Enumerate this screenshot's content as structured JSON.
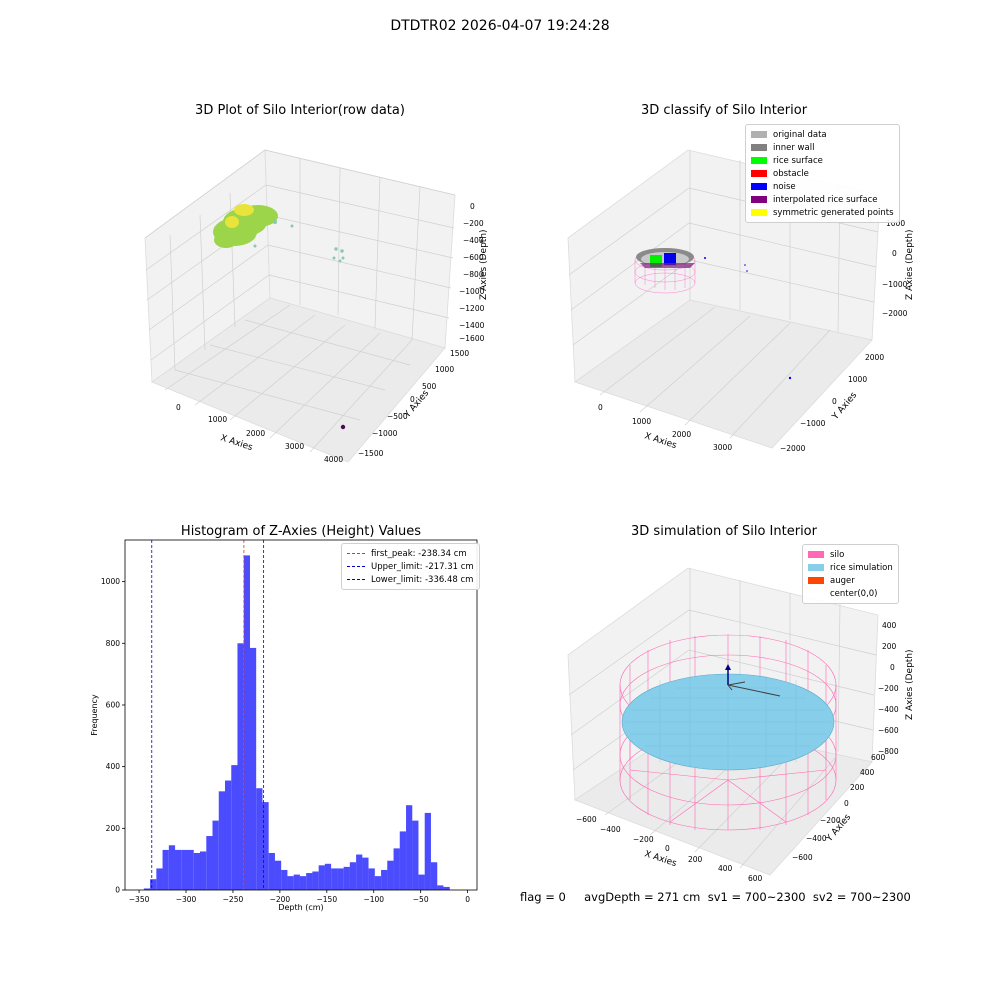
{
  "suptitle": "DTDTR02 2026-04-07 19:24:28",
  "footer": "flag = 0     avgDepth = 271 cm  sv1 = 700~2300  sv2 = 700~2300",
  "chart_data": [
    {
      "type": "scatter",
      "title": "3D Plot of Silo Interior(row data)",
      "xlabel": "X Axies",
      "ylabel": "Y Axies",
      "zlabel": "Z Axies (Depth)",
      "x_ticks": [
        "0",
        "1000",
        "2000",
        "3000",
        "4000"
      ],
      "y_ticks": [
        "1500",
        "1000",
        "500",
        "0",
        "−500",
        "−1000",
        "−1500"
      ],
      "z_ticks": [
        "0",
        "−200",
        "−400",
        "−600",
        "−800",
        "−1000",
        "−1200",
        "−1400",
        "−1600"
      ],
      "grid": true
    },
    {
      "type": "scatter",
      "title": "3D classify of Silo Interior",
      "xlabel": "X Axies",
      "ylabel": "Y Axies",
      "zlabel": "Z Axies (Depth)",
      "x_ticks": [
        "0",
        "1000",
        "2000",
        "3000"
      ],
      "y_ticks": [
        "2000",
        "1000",
        "0",
        "−1000",
        "−2000"
      ],
      "z_ticks": [
        "1000",
        "0",
        "−1000",
        "−2000"
      ],
      "legend": [
        {
          "name": "original data",
          "color": "#b0b0b0"
        },
        {
          "name": "inner wall",
          "color": "#808080"
        },
        {
          "name": "rice surface",
          "color": "#00ff00"
        },
        {
          "name": "obstacle",
          "color": "#ff0000"
        },
        {
          "name": "noise",
          "color": "#0000ff"
        },
        {
          "name": "interpolated rice surface",
          "color": "#800080"
        },
        {
          "name": "symmetric generated points",
          "color": "#ffff00"
        }
      ],
      "legend_position": "top-right",
      "grid": true
    },
    {
      "type": "bar",
      "title": "Histogram of Z-Axies (Height) Values",
      "xlabel": "Depth (cm)",
      "ylabel": "Frequency",
      "xlim": [
        -365,
        10
      ],
      "ylim": [
        0,
        1135
      ],
      "x_ticks": [
        -350,
        -300,
        -250,
        -200,
        -150,
        -100,
        -50,
        0
      ],
      "y_ticks": [
        0,
        200,
        400,
        600,
        800,
        1000
      ],
      "bin_width": 6.65,
      "bins_start": [
        -344.9,
        -338.3,
        -331.6,
        -325.0,
        -318.3,
        -311.7,
        -305.0,
        -298.4,
        -291.7,
        -285.1,
        -278.4,
        -271.8,
        -265.1,
        -258.5,
        -251.8,
        -245.2,
        -238.5,
        -231.9,
        -225.2,
        -218.6,
        -211.9,
        -205.3,
        -198.6,
        -192.0,
        -185.3,
        -178.7,
        -172.0,
        -165.4,
        -158.7,
        -152.1,
        -145.4,
        -138.8,
        -132.1,
        -125.5,
        -118.8,
        -112.2,
        -105.5,
        -98.9,
        -92.2,
        -85.6,
        -78.9,
        -72.3,
        -65.6,
        -59.0,
        -52.3,
        -45.7,
        -39.0,
        -32.4,
        -25.7,
        -19.1,
        -12.4,
        -5.8
      ],
      "values": [
        5,
        35,
        70,
        130,
        145,
        130,
        130,
        130,
        120,
        125,
        175,
        225,
        320,
        355,
        405,
        800,
        1085,
        785,
        330,
        285,
        120,
        95,
        65,
        45,
        50,
        45,
        55,
        60,
        80,
        85,
        70,
        70,
        75,
        90,
        115,
        105,
        70,
        45,
        65,
        95,
        135,
        190,
        275,
        225,
        50,
        250,
        90,
        15,
        10,
        0,
        0,
        0
      ],
      "vlines": [
        {
          "name": "first_peak: -238.34 cm",
          "x": -238.34,
          "color": "#e03030"
        },
        {
          "name": "Upper_limit: -217.31 cm",
          "x": -217.31,
          "color": "#0000cc"
        },
        {
          "name": "Lower_limit: -336.48 cm",
          "x": -336.48,
          "color": "#0000cc"
        }
      ],
      "bar_color": "#0000ff",
      "legend_position": "top-right"
    },
    {
      "type": "scatter",
      "title": "3D simulation of Silo Interior",
      "xlabel": "X Axies",
      "ylabel": "Y Axies",
      "zlabel": "Z Axies (Depth)",
      "x_ticks": [
        "−600",
        "−400",
        "−200",
        "0",
        "200",
        "400",
        "600"
      ],
      "y_ticks": [
        "600",
        "400",
        "200",
        "0",
        "−200",
        "−400",
        "−600"
      ],
      "z_ticks": [
        "400",
        "200",
        "0",
        "−200",
        "−400",
        "−600",
        "−800"
      ],
      "legend": [
        {
          "name": "silo",
          "color": "#ff69b4"
        },
        {
          "name": "rice simulation",
          "color": "#87ceeb"
        },
        {
          "name": "auger",
          "color": "#ff4500"
        },
        {
          "name": "center(0,0)",
          "color": ""
        }
      ],
      "legend_position": "top-right",
      "grid": true
    }
  ]
}
